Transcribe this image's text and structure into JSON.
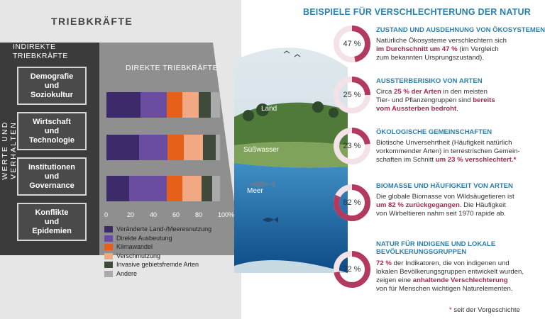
{
  "left": {
    "title": "TRIEBKRÄFTE",
    "indirect_title_line1": "INDIREKTE",
    "indirect_title_line2": "TRIEBKRÄFTE",
    "values_label": "WERTE UND VERHALTEN",
    "indirect_drivers": [
      {
        "l1": "Demografie",
        "l2": "und",
        "l3": "Soziokultur"
      },
      {
        "l1": "Wirtschaft",
        "l2": "und",
        "l3": "Technologie"
      },
      {
        "l1": "Institutionen",
        "l2": "und",
        "l3": "Governance"
      },
      {
        "l1": "Konflikte",
        "l2": "und",
        "l3": "Epidemien"
      }
    ],
    "direct_title": "DIREKTE TRIEBKRÄFTE"
  },
  "chart_data": {
    "type": "bar",
    "categories": [
      "Land",
      "Süßwasser",
      "Meer"
    ],
    "xlim": [
      0,
      100
    ],
    "x_ticks": [
      "0",
      "20",
      "40",
      "60",
      "80",
      "100%"
    ],
    "series": [
      {
        "name": "Veränderte Land-/Meeresnutzung",
        "color": "#3d2a6b",
        "values": [
          30,
          29,
          20
        ]
      },
      {
        "name": "Direkte Ausbeutung",
        "color": "#6a4ca1",
        "values": [
          23,
          25,
          33
        ]
      },
      {
        "name": "Klimawandel",
        "color": "#e6601a",
        "values": [
          14,
          14,
          14
        ]
      },
      {
        "name": "Verschmutzung",
        "color": "#f2a983",
        "values": [
          14,
          17,
          17
        ]
      },
      {
        "name": "Invasive gebietsfremde Arten",
        "color": "#404a3a",
        "values": [
          11,
          11,
          9
        ]
      },
      {
        "name": "Andere",
        "color": "#aaaaaa",
        "values": [
          8,
          4,
          7
        ]
      }
    ]
  },
  "globe": {
    "land": "Land",
    "freshwater": "Süßwasser",
    "sea": "Meer"
  },
  "right": {
    "title": "BEISPIELE FÜR VERSCHLECHTERUNG DER NATUR",
    "cards": [
      {
        "percent": "47 %",
        "fraction": 0.47,
        "head": "ZUSTAND UND AUSDEHNUNG VON ÖKOSYSTEMEN",
        "b1": "Natürliche Ökosysteme verschlechtern sich",
        "b2h": "im Durchschnitt um 47 %",
        "b2": " (im Vergleich",
        "b3": "zum bekannten Ursprungszustand)."
      },
      {
        "percent": "25 %",
        "fraction": 0.25,
        "head": "AUSSTERBERISIKO VON ARTEN",
        "b1a": "Circa ",
        "b1h": "25 % der Arten",
        "b1b": " in den meisten",
        "b2": "Tier- und Pflanzengruppen sind ",
        "b2h": "bereits",
        "b3h": "vom Aussterben bedroht",
        "b3": "."
      },
      {
        "percent": "23 %",
        "fraction": 0.23,
        "head": "ÖKOLOGISCHE GEMEINSCHAFTEN",
        "b1": "Biotische Unversehrtheit (Häufigkeit natürlich",
        "b2": "vorkommender Arten) in terrestrischen Gemein-",
        "b3": "schaften im Schnitt ",
        "b3h": "um 23 % verschlechtert.",
        "b3s": "*"
      },
      {
        "percent": "82 %",
        "fraction": 0.82,
        "head": "BIOMASSE UND HÄUFIGKEIT VON ARTEN",
        "b1": "Die globale Biomasse von Wildsäugetieren ist",
        "b2h": "um 82 % zurückgegangen",
        "b2": ". Die Häufigkeit",
        "b3": "von Wirbeltieren nahm seit 1970 rapide ab."
      },
      {
        "percent": "72 %",
        "fraction": 0.72,
        "head1": "NATUR FÜR INDIGENE UND LOKALE",
        "head2": "BEVÖLKERUNGSGRUPPEN",
        "b1h": "72 %",
        "b1": " der Indikatoren, die von indigenen und",
        "b2": "lokalen Bevölkerungsgruppen entwickelt wurden,",
        "b3": "zeigen eine ",
        "b3h": "anhaltende Verschlechterung",
        "b4": "von für Menschen wichtigen Naturelementen."
      }
    ],
    "footnote_star": "*",
    "footnote": " seit der Vorgeschichte"
  },
  "colors": {
    "accent_blue": "#2e7fa9",
    "highlight": "#b0254f",
    "donut": "#b23a5e",
    "donut_track": "#f3e3e8"
  }
}
